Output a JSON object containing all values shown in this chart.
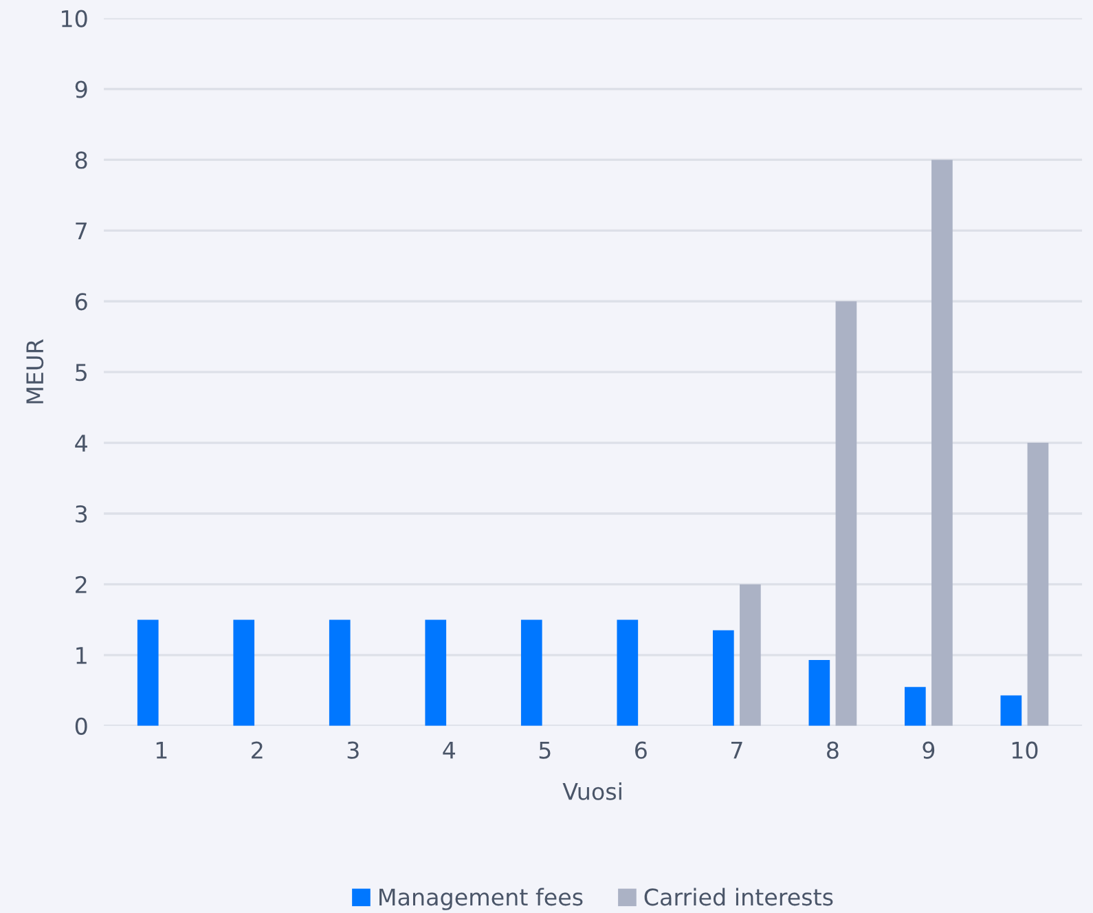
{
  "chart_data": {
    "type": "bar",
    "xlabel": "Vuosi",
    "ylabel": "MEUR",
    "categories": [
      "1",
      "2",
      "3",
      "4",
      "5",
      "6",
      "7",
      "8",
      "9",
      "10"
    ],
    "series": [
      {
        "name": "Management fees",
        "color": "#0077ff",
        "values": [
          1.5,
          1.5,
          1.5,
          1.5,
          1.5,
          1.5,
          1.35,
          0.93,
          0.55,
          0.43
        ]
      },
      {
        "name": "Carried interests",
        "color": "#abb2c5",
        "values": [
          0,
          0,
          0,
          0,
          0,
          0,
          2,
          6,
          8,
          4
        ]
      }
    ],
    "ylim": [
      0,
      10
    ],
    "yticks": [
      0,
      1,
      2,
      3,
      4,
      5,
      6,
      7,
      8,
      9,
      10
    ],
    "grid": "y",
    "legend": "bottom"
  }
}
